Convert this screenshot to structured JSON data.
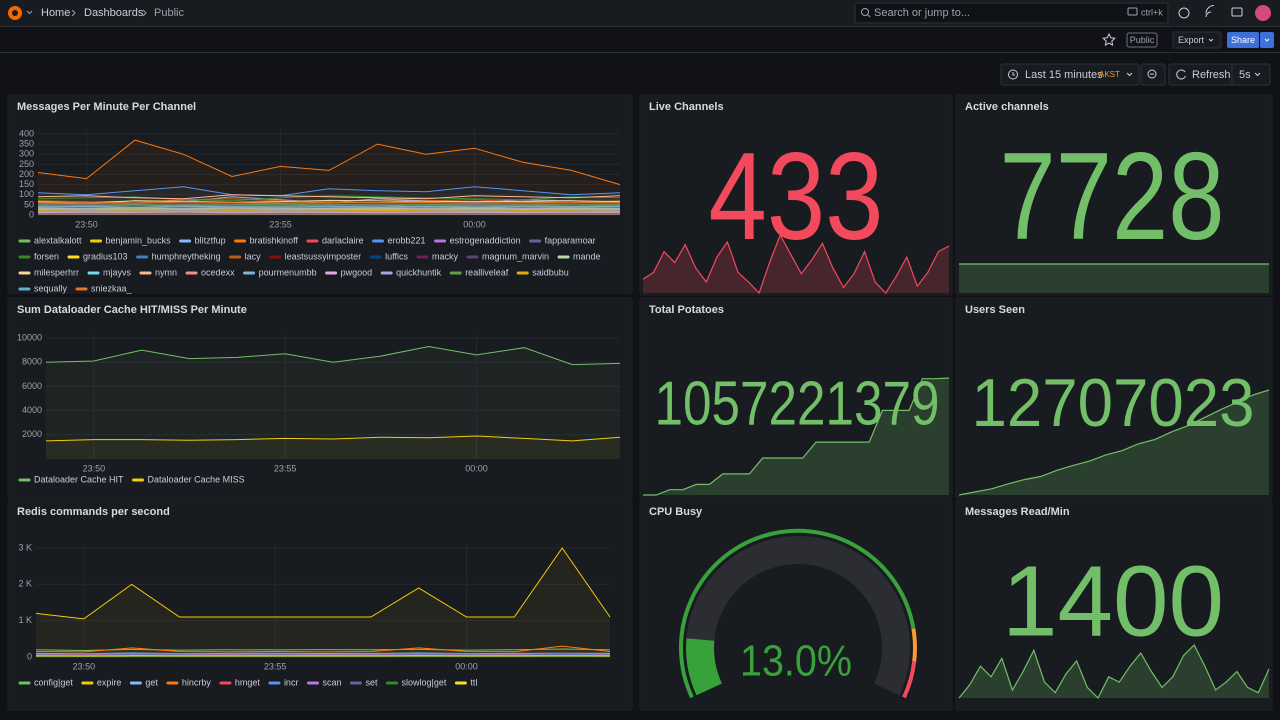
{
  "header": {
    "breadcrumb": [
      "Home",
      "Dashboards",
      "Public"
    ],
    "search_placeholder": "Search or jump to...",
    "shortcut": "ctrl+k"
  },
  "toolbar": {
    "badge": "Public",
    "export": "Export",
    "share": "Share"
  },
  "time_controls": {
    "range": "Last 15 minutes",
    "timezone": "AKST",
    "refresh": "Refresh",
    "interval": "5s"
  },
  "chart_data": [
    {
      "type": "line",
      "title": "Messages Per Minute Per Channel",
      "categories": [
        null,
        "23:50",
        null,
        null,
        null,
        "23:55",
        null,
        null,
        null,
        "00:00",
        null,
        null,
        null
      ],
      "ylim": [
        0,
        400
      ],
      "yticks": [
        0,
        50,
        100,
        150,
        200,
        250,
        300,
        350,
        400
      ],
      "grid": true,
      "series": [
        {
          "name": "alextalkalott",
          "color": "#73bf69",
          "values": [
            40,
            45,
            50,
            42,
            38,
            45,
            50,
            48,
            40,
            44,
            46,
            42,
            45
          ]
        },
        {
          "name": "benjamin_bucks",
          "color": "#f2cc0c",
          "values": [
            30,
            28,
            35,
            32,
            30,
            29,
            33,
            31,
            30,
            28,
            32,
            30,
            31
          ]
        },
        {
          "name": "blitztfup",
          "color": "#8ab8ff",
          "values": [
            60,
            55,
            70,
            65,
            90,
            75,
            60,
            80,
            70,
            65,
            75,
            70,
            60
          ]
        },
        {
          "name": "bratishkinoff",
          "color": "#ff780a",
          "values": [
            210,
            180,
            370,
            300,
            190,
            240,
            220,
            350,
            300,
            330,
            260,
            220,
            150
          ]
        },
        {
          "name": "darlaclaire",
          "color": "#f2495c",
          "values": [
            20,
            25,
            22,
            30,
            28,
            25,
            24,
            26,
            22,
            20,
            25,
            24,
            23
          ]
        },
        {
          "name": "erobb221",
          "color": "#5794f2",
          "values": [
            110,
            100,
            120,
            140,
            100,
            95,
            130,
            120,
            115,
            140,
            120,
            100,
            110
          ]
        },
        {
          "name": "estrogenaddiction",
          "color": "#b877d9",
          "values": [
            15,
            18,
            20,
            16,
            14,
            17,
            19,
            18,
            16,
            15,
            17,
            18,
            16
          ]
        },
        {
          "name": "fapparamoar",
          "color": "#705da0",
          "values": [
            50,
            55,
            48,
            52,
            60,
            58,
            55,
            50,
            52,
            54,
            56,
            50,
            48
          ]
        },
        {
          "name": "forsen",
          "color": "#37872d",
          "values": [
            80,
            85,
            90,
            75,
            70,
            85,
            95,
            90,
            85,
            80,
            75,
            90,
            85
          ]
        },
        {
          "name": "gradius103",
          "color": "#fade2a",
          "values": [
            25,
            30,
            28,
            26,
            24,
            27,
            29,
            28,
            26,
            25,
            27,
            28,
            26
          ]
        },
        {
          "name": "humphreytheking",
          "color": "#447ebc",
          "values": [
            45,
            40,
            50,
            48,
            44,
            46,
            52,
            50,
            48,
            45,
            47,
            50,
            46
          ]
        },
        {
          "name": "lacy",
          "color": "#c15c17",
          "values": [
            70,
            65,
            60,
            75,
            80,
            70,
            65,
            60,
            70,
            75,
            65,
            60,
            70
          ]
        },
        {
          "name": "leastsussyimposter",
          "color": "#890f02",
          "values": [
            10,
            12,
            14,
            11,
            13,
            12,
            10,
            11,
            13,
            12,
            11,
            12,
            10
          ]
        },
        {
          "name": "luffics",
          "color": "#0a437c",
          "values": [
            35,
            38,
            40,
            36,
            34,
            37,
            39,
            38,
            36,
            35,
            37,
            38,
            36
          ]
        },
        {
          "name": "macky",
          "color": "#6d1f62",
          "values": [
            20,
            22,
            24,
            21,
            23,
            22,
            20,
            21,
            23,
            22,
            21,
            22,
            20
          ]
        },
        {
          "name": "magnum_marvin",
          "color": "#584477",
          "values": [
            55,
            50,
            60,
            58,
            52,
            56,
            62,
            60,
            58,
            55,
            57,
            60,
            56
          ]
        },
        {
          "name": "mande",
          "color": "#b7dbab",
          "values": [
            30,
            32,
            34,
            31,
            33,
            32,
            30,
            31,
            33,
            32,
            31,
            32,
            30
          ]
        },
        {
          "name": "milesperhrr",
          "color": "#f4d598",
          "values": [
            65,
            60,
            70,
            68,
            62,
            66,
            72,
            70,
            68,
            65,
            67,
            70,
            66
          ]
        },
        {
          "name": "mjayvs",
          "color": "#70dbed",
          "values": [
            15,
            16,
            18,
            15,
            17,
            16,
            15,
            16,
            18,
            17,
            16,
            15,
            16
          ]
        },
        {
          "name": "nymn",
          "color": "#f9ba8f",
          "values": [
            90,
            95,
            85,
            80,
            100,
            95,
            90,
            85,
            80,
            95,
            90,
            85,
            95
          ]
        },
        {
          "name": "ocedexx",
          "color": "#f29191",
          "values": [
            25,
            27,
            26,
            28,
            25,
            27,
            26,
            24,
            26,
            27,
            25,
            26,
            27
          ]
        },
        {
          "name": "pourmenumbb",
          "color": "#82b5d8",
          "values": [
            40,
            42,
            38,
            44,
            41,
            39,
            43,
            40,
            42,
            38,
            41,
            40,
            42
          ]
        },
        {
          "name": "pwgood",
          "color": "#e5a8e2",
          "values": [
            12,
            14,
            13,
            15,
            12,
            14,
            13,
            12,
            14,
            13,
            12,
            14,
            13
          ]
        },
        {
          "name": "quickhuntik",
          "color": "#aea2e0",
          "values": [
            35,
            33,
            37,
            34,
            36,
            33,
            35,
            37,
            34,
            36,
            33,
            35,
            34
          ]
        },
        {
          "name": "realliveleaf",
          "color": "#629e51",
          "values": [
            50,
            48,
            52,
            49,
            51,
            53,
            50,
            48,
            52,
            49,
            51,
            50,
            52
          ]
        },
        {
          "name": "saidbubu",
          "color": "#e5ac0e",
          "values": [
            22,
            24,
            23,
            25,
            22,
            24,
            23,
            21,
            23,
            24,
            22,
            23,
            24
          ]
        },
        {
          "name": "sequally",
          "color": "#64b0c8",
          "values": [
            18,
            20,
            19,
            21,
            18,
            20,
            19,
            17,
            19,
            20,
            18,
            19,
            20
          ]
        },
        {
          "name": "sniezkaa_",
          "color": "#e0752d",
          "values": [
            60,
            62,
            58,
            64,
            61,
            59,
            63,
            60,
            62,
            58,
            61,
            60,
            62
          ]
        }
      ]
    },
    {
      "type": "stat",
      "title": "Live Channels",
      "value": 433,
      "color": "#f2495c",
      "sparkline": [
        420,
        425,
        440,
        432,
        445,
        428,
        418,
        436,
        447,
        425,
        418,
        410,
        432,
        452,
        438,
        424,
        434,
        446,
        428,
        414,
        424,
        440,
        418,
        410,
        422,
        436,
        415,
        425,
        440,
        444
      ]
    },
    {
      "type": "stat",
      "title": "Active channels",
      "value": 7728,
      "color": "#73bf69",
      "sparkline": [
        7728,
        7728,
        7728,
        7728,
        7728,
        7728,
        7728,
        7728,
        7728,
        7728,
        7728,
        7728,
        7728,
        7728,
        7728,
        7728,
        7728,
        7728,
        7728,
        7728
      ]
    },
    {
      "type": "line",
      "title": "Sum Dataloader Cache HIT/MISS Per Minute",
      "categories": [
        null,
        "23:50",
        null,
        null,
        null,
        "23:55",
        null,
        null,
        null,
        "00:00",
        null,
        null,
        null
      ],
      "ylim": [
        0,
        10000
      ],
      "yticks": [
        2000,
        4000,
        6000,
        8000,
        10000
      ],
      "grid": true,
      "series": [
        {
          "name": "Dataloader Cache HIT",
          "color": "#73bf69",
          "values": [
            8000,
            8100,
            9000,
            8300,
            8400,
            8700,
            8000,
            8500,
            9300,
            8600,
            9200,
            7800,
            7900
          ]
        },
        {
          "name": "Dataloader Cache MISS",
          "color": "#f2cc0c",
          "values": [
            1500,
            1600,
            1600,
            1550,
            1600,
            1700,
            1650,
            1800,
            1750,
            1900,
            1700,
            1500,
            1800
          ]
        }
      ]
    },
    {
      "type": "stat",
      "title": "Total Potatoes",
      "value": 1057221379,
      "color": "#73bf69",
      "sparkline": [
        1057000000,
        1057000000,
        1057010000,
        1057010000,
        1057020000,
        1057020000,
        1057040000,
        1057040000,
        1057040000,
        1057070000,
        1057070000,
        1057070000,
        1057070000,
        1057100000,
        1057100000,
        1057100000,
        1057100000,
        1057100000,
        1057160000,
        1057160000,
        1057160000,
        1057220000,
        1057220000,
        1057221379
      ]
    },
    {
      "type": "stat",
      "title": "Users Seen",
      "value": 12707023,
      "color": "#73bf69",
      "sparkline": [
        12690000,
        12690500,
        12691000,
        12691800,
        12692500,
        12693000,
        12694000,
        12694800,
        12695500,
        12696500,
        12697200,
        12698300,
        12699000,
        12700200,
        12701200,
        12702500,
        12703800,
        12705000,
        12706200,
        12707023
      ]
    },
    {
      "type": "line",
      "title": "Redis commands per second",
      "categories": [
        null,
        "23:50",
        null,
        null,
        null,
        "23:55",
        null,
        null,
        null,
        "00:00",
        null,
        null,
        null
      ],
      "ylim": [
        0,
        3000
      ],
      "yticks": [
        0,
        {
          "value": 1000,
          "label": "1 K"
        },
        {
          "value": 2000,
          "label": "2 K"
        },
        {
          "value": 3000,
          "label": "3 K"
        }
      ],
      "grid": true,
      "series": [
        {
          "name": "config|get",
          "color": "#73bf69",
          "values": [
            200,
            180,
            210,
            190,
            200,
            195,
            205,
            200,
            210,
            190,
            200,
            220,
            200
          ]
        },
        {
          "name": "expire",
          "color": "#f2cc0c",
          "values": [
            1200,
            1050,
            2000,
            1100,
            1100,
            1100,
            1100,
            1100,
            1900,
            1100,
            1100,
            3000,
            1100
          ]
        },
        {
          "name": "get",
          "color": "#8ab8ff",
          "values": [
            100,
            90,
            110,
            95,
            100,
            105,
            95,
            100,
            110,
            95,
            100,
            105,
            100
          ]
        },
        {
          "name": "hincrby",
          "color": "#ff780a",
          "values": [
            150,
            140,
            250,
            150,
            145,
            150,
            140,
            150,
            250,
            150,
            145,
            300,
            150
          ]
        },
        {
          "name": "hmget",
          "color": "#f2495c",
          "values": [
            80,
            75,
            90,
            85,
            80,
            82,
            78,
            80,
            90,
            85,
            80,
            95,
            80
          ]
        },
        {
          "name": "incr",
          "color": "#5794f2",
          "values": [
            60,
            55,
            65,
            60,
            58,
            62,
            60,
            58,
            65,
            60,
            58,
            70,
            60
          ]
        },
        {
          "name": "scan",
          "color": "#b877d9",
          "values": [
            20,
            22,
            24,
            21,
            23,
            22,
            20,
            21,
            23,
            22,
            21,
            22,
            20
          ]
        },
        {
          "name": "set",
          "color": "#705da0",
          "values": [
            50,
            45,
            55,
            50,
            48,
            52,
            50,
            48,
            55,
            50,
            48,
            60,
            50
          ]
        },
        {
          "name": "slowlog|get",
          "color": "#37872d",
          "values": [
            10,
            12,
            11,
            10,
            12,
            11,
            10,
            12,
            11,
            10,
            12,
            11,
            10
          ]
        },
        {
          "name": "ttl",
          "color": "#fade2a",
          "values": [
            30,
            28,
            32,
            30,
            29,
            31,
            30,
            29,
            32,
            30,
            29,
            35,
            30
          ]
        }
      ]
    },
    {
      "type": "gauge",
      "title": "CPU Busy",
      "value": 13.0,
      "value_label": "13.0%",
      "color": "#37a23a",
      "min": 0,
      "max": 100,
      "thresholds": [
        {
          "value": 0,
          "color": "#37a23a"
        },
        {
          "value": 85,
          "color": "#ff9830"
        },
        {
          "value": 92,
          "color": "#f2495c"
        }
      ]
    },
    {
      "type": "stat",
      "title": "Messages Read/Min",
      "value": 1400,
      "color": "#73bf69",
      "sparkline": [
        1380,
        1385,
        1392,
        1388,
        1395,
        1383,
        1390,
        1398,
        1386,
        1382,
        1389,
        1394,
        1384,
        1380,
        1388,
        1386,
        1392,
        1397,
        1390,
        1384,
        1388,
        1396,
        1400,
        1392,
        1383,
        1386,
        1390,
        1384,
        1382,
        1391
      ]
    }
  ]
}
